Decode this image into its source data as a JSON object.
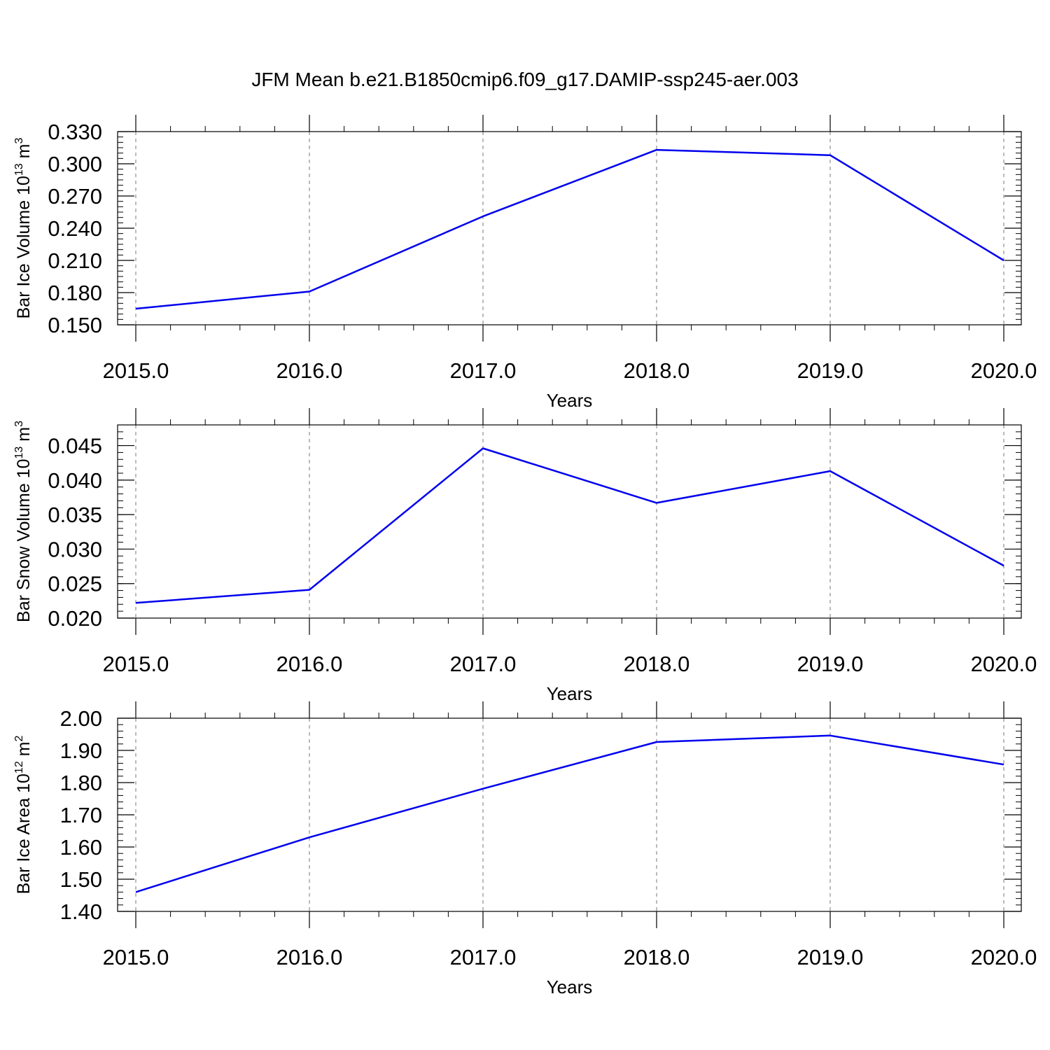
{
  "title": "JFM Mean b.e21.B1850cmip6.f09_g17.DAMIP-ssp245-aer.003",
  "colors": {
    "line": "#0000ee",
    "axis": "#000000",
    "grid": "#777777"
  },
  "chart_data": [
    {
      "type": "line",
      "ylabel_text": "Bar Ice Volume 10",
      "ylabel_exp": "13",
      "ylabel_unit": " m",
      "ylabel_unit_exp": "3",
      "xlabel": "Years",
      "xlim": [
        2015.0,
        2020.0
      ],
      "ylim": [
        0.15,
        0.33
      ],
      "x_ticks": [
        "2015.0",
        "2016.0",
        "2017.0",
        "2018.0",
        "2019.0",
        "2020.0"
      ],
      "y_ticks": [
        "0.150",
        "0.180",
        "0.210",
        "0.240",
        "0.270",
        "0.300",
        "0.330"
      ],
      "grid": "vertical dashed at years",
      "series": [
        {
          "x": [
            2015,
            2016,
            2017,
            2018,
            2019,
            2020
          ],
          "values": [
            0.165,
            0.181,
            0.251,
            0.313,
            0.308,
            0.21
          ]
        }
      ]
    },
    {
      "type": "line",
      "ylabel_text": "Bar Snow Volume 10",
      "ylabel_exp": "13",
      "ylabel_unit": " m",
      "ylabel_unit_exp": "3",
      "xlabel": "Years",
      "xlim": [
        2015.0,
        2020.0
      ],
      "ylim": [
        0.02,
        0.048
      ],
      "x_ticks": [
        "2015.0",
        "2016.0",
        "2017.0",
        "2018.0",
        "2019.0",
        "2020.0"
      ],
      "y_ticks": [
        "0.020",
        "0.025",
        "0.030",
        "0.035",
        "0.040",
        "0.045"
      ],
      "grid": "vertical dashed at years",
      "series": [
        {
          "x": [
            2015,
            2016,
            2017,
            2018,
            2019,
            2020
          ],
          "values": [
            0.0222,
            0.0241,
            0.0446,
            0.0367,
            0.0413,
            0.0276
          ]
        }
      ]
    },
    {
      "type": "line",
      "ylabel_text": "Bar Ice Area 10",
      "ylabel_exp": "12",
      "ylabel_unit": " m",
      "ylabel_unit_exp": "2",
      "xlabel": "Years",
      "xlim": [
        2015.0,
        2020.0
      ],
      "ylim": [
        1.4,
        2.0
      ],
      "x_ticks": [
        "2015.0",
        "2016.0",
        "2017.0",
        "2018.0",
        "2019.0",
        "2020.0"
      ],
      "y_ticks": [
        "1.40",
        "1.50",
        "1.60",
        "1.70",
        "1.80",
        "1.90",
        "2.00"
      ],
      "grid": "vertical dashed at years",
      "series": [
        {
          "x": [
            2015,
            2016,
            2017,
            2018,
            2019,
            2020
          ],
          "values": [
            1.46,
            1.63,
            1.781,
            1.926,
            1.946,
            1.856
          ]
        }
      ]
    }
  ]
}
